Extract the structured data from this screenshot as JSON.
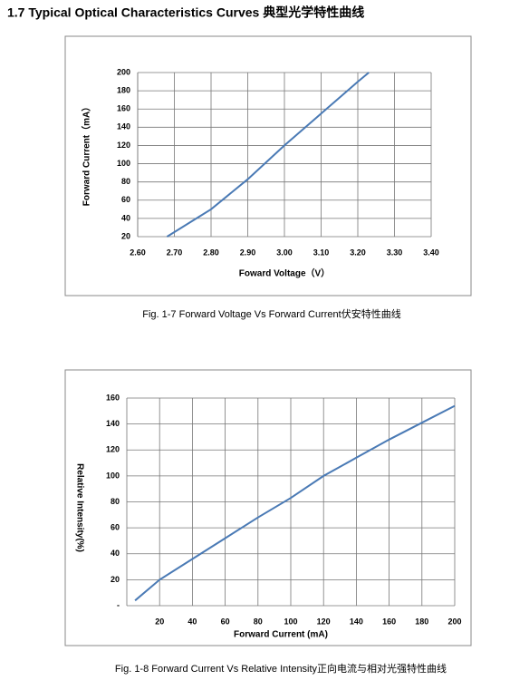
{
  "header": {
    "title": "1.7 Typical Optical Characteristics Curves 典型光学特性曲线"
  },
  "chart_data": [
    {
      "type": "line",
      "caption": "Fig. 1-7 Forward Voltage Vs Forward Current伏安特性曲线",
      "x_label": "Foward Voltage（V）",
      "y_label": "Forward Current（mA）",
      "x": [
        2.68,
        2.76,
        2.8,
        2.9,
        3.0,
        3.1,
        3.2,
        3.23
      ],
      "series": [
        {
          "color": "#4a7ab5",
          "values": [
            20,
            40,
            50,
            83,
            120,
            155,
            190,
            200
          ]
        }
      ],
      "xlim": [
        2.6,
        3.4
      ],
      "xticks": [
        {
          "value": 2.6,
          "label": "2.60"
        },
        {
          "value": 2.7,
          "label": "2.70"
        },
        {
          "value": 2.8,
          "label": "2.80"
        },
        {
          "value": 2.9,
          "label": "2.90"
        },
        {
          "value": 3.0,
          "label": "3.00"
        },
        {
          "value": 3.1,
          "label": "3.10"
        },
        {
          "value": 3.2,
          "label": "3.20"
        },
        {
          "value": 3.3,
          "label": "3.30"
        },
        {
          "value": 3.4,
          "label": "3.40"
        }
      ],
      "ylim": [
        20,
        200
      ],
      "yticks": [
        20,
        40,
        60,
        80,
        100,
        120,
        140,
        160,
        180,
        200
      ],
      "grid": true
    },
    {
      "type": "line",
      "caption": "Fig. 1-8 Forward Current Vs Relative Intensity正向电流与相对光强特性曲线",
      "x_label": "Forward Current (mA)",
      "y_label": "Relative Intensity(%)",
      "x": [
        5,
        20,
        40,
        60,
        80,
        100,
        120,
        140,
        160,
        180,
        200
      ],
      "series": [
        {
          "color": "#4a7ab5",
          "values": [
            4,
            20,
            36,
            52,
            68,
            83,
            100,
            114,
            128,
            141,
            154
          ]
        }
      ],
      "xlim": [
        0,
        200
      ],
      "xticks": [
        20,
        40,
        60,
        80,
        100,
        120,
        140,
        160,
        180,
        200
      ],
      "ylim": [
        0,
        160
      ],
      "yticks": [
        {
          "value": 0,
          "label": "-"
        },
        20,
        40,
        60,
        80,
        100,
        120,
        140,
        160
      ],
      "grid": true
    }
  ]
}
